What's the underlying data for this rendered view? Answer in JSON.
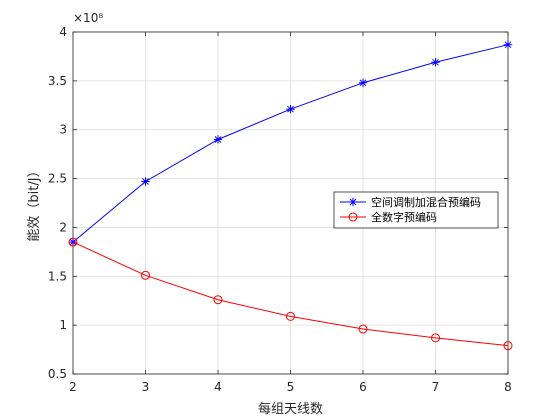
{
  "chart_data": {
    "type": "line",
    "x": [
      2,
      3,
      4,
      5,
      6,
      7,
      8
    ],
    "series": [
      {
        "name": "空间调制加混合预编码",
        "values": [
          1.85,
          2.47,
          2.9,
          3.21,
          3.48,
          3.69,
          3.87
        ],
        "color": "#0000ff",
        "marker": "asterisk"
      },
      {
        "name": "全数字预编码",
        "values": [
          1.85,
          1.51,
          1.26,
          1.09,
          0.96,
          0.87,
          0.79
        ],
        "color": "#ff0000",
        "marker": "circle"
      }
    ],
    "xlabel": "每组天线数",
    "ylabel": "能效（bit/J）",
    "y_multiplier": "×10⁸",
    "xlim": [
      2,
      8
    ],
    "ylim": [
      0.5,
      4
    ],
    "xticks": [
      "2",
      "3",
      "4",
      "5",
      "6",
      "7",
      "8"
    ],
    "yticks": [
      "0.5",
      "1",
      "1.5",
      "2",
      "2.5",
      "3",
      "3.5",
      "4"
    ],
    "grid": true,
    "legend_position": "center-right"
  }
}
